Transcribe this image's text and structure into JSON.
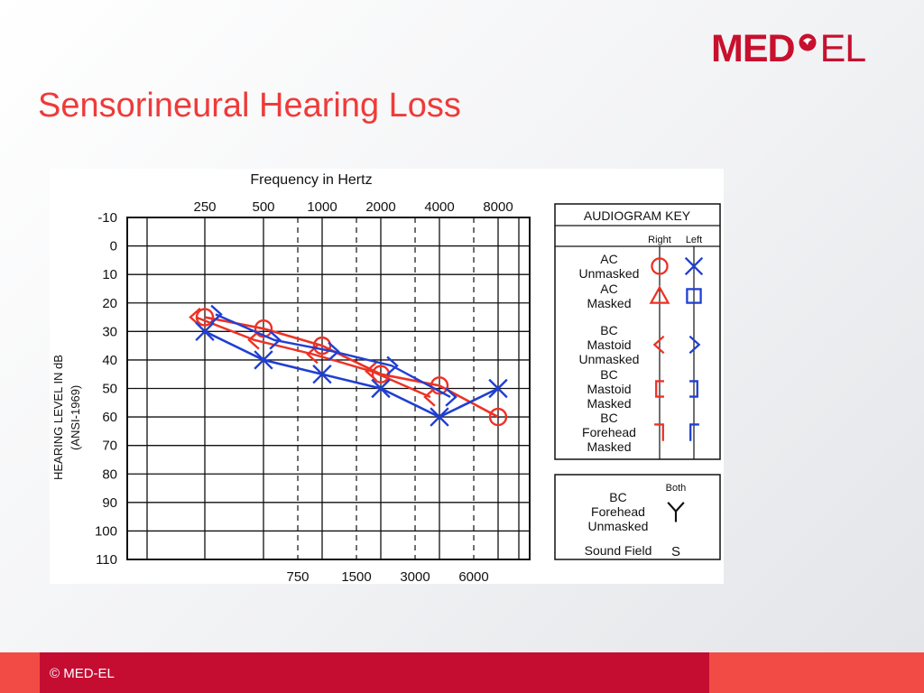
{
  "logo": {
    "bold": "MED",
    "light": "EL"
  },
  "slide": {
    "title": "Sensorineural Hearing Loss"
  },
  "footer": {
    "copyright": "© MED-EL"
  },
  "colors": {
    "brand": "#c8102e",
    "title": "#ee3b39",
    "right_ear": "#ee3124",
    "left_ear": "#1f3fd2",
    "footer_dark": "#c50d32",
    "footer_light": "#f24b45"
  },
  "chart_data": {
    "type": "line",
    "title": "Frequency in Hertz",
    "ylabel": "HEARING LEVEL IN dB",
    "ylabel2": "(ANSI-1969)",
    "x": [
      250,
      500,
      1000,
      2000,
      4000,
      8000
    ],
    "x_top_ticks": [
      "250",
      "500",
      "1000",
      "2000",
      "4000",
      "8000"
    ],
    "x_bottom_ticks": [
      {
        "label": "750",
        "value": 750
      },
      {
        "label": "1500",
        "value": 1500
      },
      {
        "label": "3000",
        "value": 3000
      },
      {
        "label": "6000",
        "value": 6000
      }
    ],
    "y_ticks": [
      -10,
      0,
      10,
      20,
      30,
      40,
      50,
      60,
      70,
      80,
      90,
      100,
      110
    ],
    "ylim": [
      -10,
      110
    ],
    "y_inverted": true,
    "grid": true,
    "series": [
      {
        "name": "Right",
        "color": "#ee3124",
        "ac": {
          "x": [
            250,
            500,
            1000,
            2000,
            4000,
            8000
          ],
          "y": [
            25,
            29,
            35,
            45,
            49,
            60
          ],
          "symbol": "circle"
        },
        "bc": {
          "x": [
            250,
            500,
            1000,
            2000,
            4000
          ],
          "y": [
            25,
            33,
            38,
            44,
            53
          ],
          "symbol": "bracket-left"
        }
      },
      {
        "name": "Left",
        "color": "#1f3fd2",
        "ac": {
          "x": [
            250,
            500,
            1000,
            2000,
            4000,
            8000
          ],
          "y": [
            30,
            40,
            45,
            50,
            60,
            50
          ],
          "symbol": "x"
        },
        "bc": {
          "x": [
            250,
            500,
            1000,
            2000,
            4000
          ],
          "y": [
            24,
            33,
            37,
            42,
            53
          ],
          "symbol": "bracket-right"
        }
      }
    ],
    "legend": {
      "title": "AUDIOGRAM KEY",
      "col_right": "Right",
      "col_left": "Left",
      "col_both": "Both",
      "placement": "right",
      "entries": [
        {
          "lines": [
            "AC",
            "Unmasked"
          ],
          "right_symbol": "circle",
          "left_symbol": "x"
        },
        {
          "lines": [
            "AC",
            "Masked"
          ],
          "right_symbol": "triangle",
          "left_symbol": "square"
        },
        {
          "lines": [
            "BC",
            "Mastoid",
            "Unmasked"
          ],
          "right_symbol": "bracket-left",
          "left_symbol": "bracket-right"
        },
        {
          "lines": [
            "BC",
            "Mastoid",
            "Masked"
          ],
          "right_symbol": "square-bracket-left",
          "left_symbol": "square-bracket-right"
        },
        {
          "lines": [
            "BC",
            "Forehead",
            "Masked"
          ],
          "right_symbol": "corner-right",
          "left_symbol": "corner-left"
        }
      ],
      "both_entries": [
        {
          "lines": [
            "BC",
            "Forehead",
            "Unmasked"
          ],
          "symbol": "arrow-down"
        },
        {
          "lines": [
            "Sound Field"
          ],
          "symbol": "S"
        }
      ]
    }
  }
}
